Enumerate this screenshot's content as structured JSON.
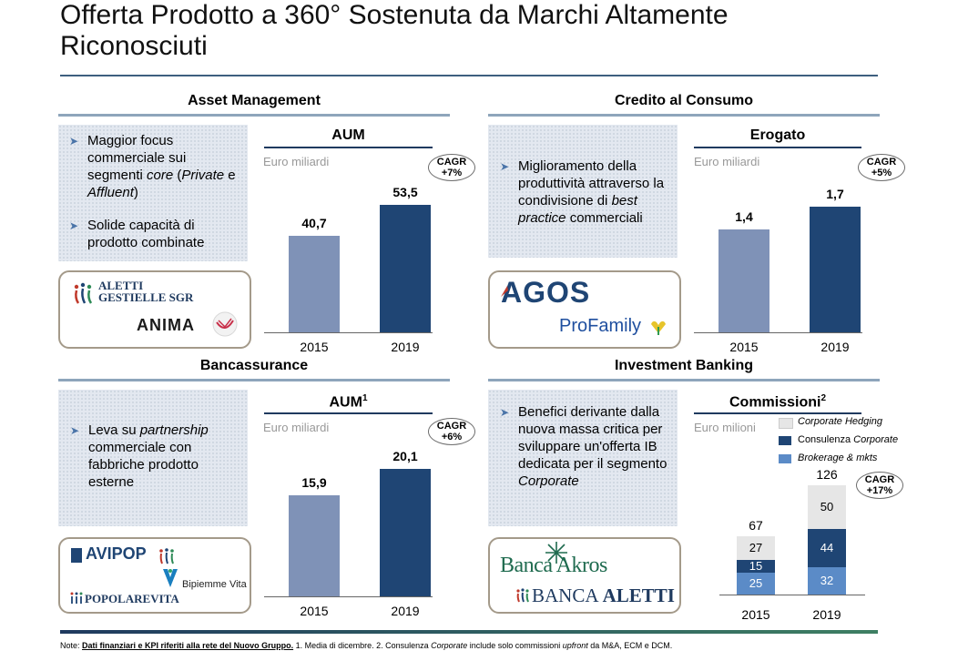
{
  "title": "Offerta Prodotto a 360° Sostenuta da Marchi Altamente Riconosciuti",
  "colors": {
    "bar_2015": "#7f92b7",
    "bar_2019": "#1f4574",
    "brokerage": "#5b8bc7",
    "consulenza": "#1f4574",
    "hedging": "#e6e6e6"
  },
  "sections": {
    "am": {
      "heading": "Asset Management",
      "bullets": [
        {
          "parts": [
            "Maggior focus commerciale sui segmenti ",
            "core",
            " (",
            "Private",
            " e ",
            "Affluent",
            ")"
          ]
        },
        {
          "text": "Solide capacità di prodotto combinate"
        }
      ],
      "logos": [
        "ALETTI",
        "GESTIELLE SGR",
        "ANIMA"
      ]
    },
    "cc": {
      "heading": "Credito al Consumo",
      "bullets": [
        {
          "parts": [
            "Miglioramento della produttività attraverso la condivisione di ",
            "best practice",
            " commerciali"
          ]
        }
      ],
      "logos": [
        "AGOS",
        "ProFamily"
      ]
    },
    "ba": {
      "heading": "Bancassurance",
      "bullets": [
        {
          "parts": [
            "Leva su ",
            "partnership",
            " commerciale con fabbriche prodotto esterne"
          ]
        }
      ],
      "logos": [
        "AVIPOP",
        "Bipiemme Vita",
        "POPOLAREVITA"
      ]
    },
    "ib": {
      "heading": "Investment Banking",
      "bullets": [
        {
          "parts": [
            "Benefici derivante dalla nuova massa critica per sviluppare un'offerta IB dedicata per il segmento ",
            "Corporate"
          ]
        }
      ],
      "logos": [
        "Banca Akros",
        "BANCA",
        "ALETTI"
      ]
    }
  },
  "chart_data": [
    {
      "type": "bar",
      "title": "AUM",
      "unit": "Euro miliardi",
      "categories": [
        "2015",
        "2019"
      ],
      "values": [
        40.7,
        53.5
      ],
      "value_labels": [
        "40,7",
        "53,5"
      ],
      "cagr": [
        "CAGR",
        "+7%"
      ]
    },
    {
      "type": "bar",
      "title": "Erogato",
      "unit": "Euro miliardi",
      "categories": [
        "2015",
        "2019"
      ],
      "values": [
        1.4,
        1.7
      ],
      "value_labels": [
        "1,4",
        "1,7"
      ],
      "cagr": [
        "CAGR",
        "+5%"
      ]
    },
    {
      "type": "bar",
      "title": "AUM",
      "title_sup": "1",
      "unit": "Euro miliardi",
      "categories": [
        "2015",
        "2019"
      ],
      "values": [
        15.9,
        20.1
      ],
      "value_labels": [
        "15,9",
        "20,1"
      ],
      "cagr": [
        "CAGR",
        "+6%"
      ]
    },
    {
      "type": "stacked-bar",
      "title": "Commissioni",
      "title_sup": "2",
      "unit": "Euro milioni",
      "categories": [
        "2015",
        "2019"
      ],
      "series": [
        {
          "name": "Brokerage & mkts",
          "values": [
            25,
            32
          ]
        },
        {
          "name": "Consulenza Corporate",
          "values": [
            15,
            44
          ]
        },
        {
          "name": "Corporate Hedging",
          "values": [
            27,
            50
          ]
        }
      ],
      "totals": [
        67,
        126
      ],
      "cagr": [
        "CAGR",
        "+17%"
      ]
    }
  ],
  "note": {
    "label": "Note:",
    "underlined": "Dati finanziari e KPI riferiti alla rete del Nuovo Gruppo.",
    "rest_parts": [
      " 1. Media di dicembre. 2. Consulenza ",
      "Corporate",
      " include solo commissioni ",
      "upfront",
      " da M&A, ECM e DCM."
    ]
  }
}
